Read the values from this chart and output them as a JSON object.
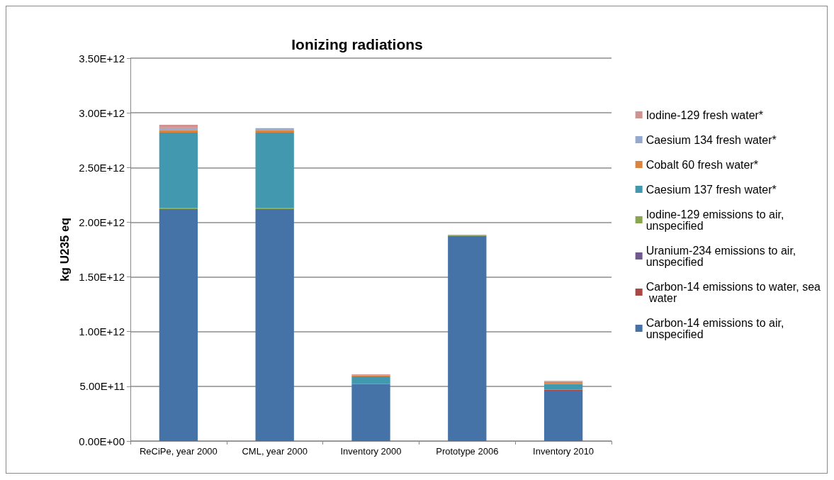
{
  "chart_data": {
    "type": "bar",
    "title": "Ionizing radiations",
    "ylabel": "kg U235 eq",
    "stacked": true,
    "grid": "y",
    "legend": "right",
    "categories": [
      "ReCiPe, year 2000",
      "CML, year 2000",
      "Inventory 2000",
      "Prototype 2006",
      "Inventory 2010"
    ],
    "ylim": [
      0,
      3500000000000
    ],
    "yticks": [
      {
        "value": 0,
        "label": "0.00E+00"
      },
      {
        "value": 500000000000,
        "label": "5.00E+11"
      },
      {
        "value": 1000000000000,
        "label": "1.00E+12"
      },
      {
        "value": 1500000000000,
        "label": "1.50E+12"
      },
      {
        "value": 2000000000000,
        "label": "2.00E+12"
      },
      {
        "value": 2500000000000,
        "label": "2.50E+12"
      },
      {
        "value": 3000000000000,
        "label": "3.00E+12"
      },
      {
        "value": 3500000000000,
        "label": "3.50E+12"
      }
    ],
    "series": [
      {
        "name": "Carbon-14 emissions to air, unspecified",
        "color": "#4572a7",
        "values": [
          2120000000000,
          2120000000000,
          520000000000,
          1875000000000,
          460000000000
        ]
      },
      {
        "name": "Carbon-14 emissions to water, sea water",
        "color": "#aa4643",
        "values": [
          0,
          0,
          0,
          0,
          10000000000
        ]
      },
      {
        "name": "Uranium-234 emissions to air, unspecified",
        "color": "#71588f",
        "values": [
          0,
          0,
          0,
          0,
          0
        ]
      },
      {
        "name": "Iodine-129 emissions to air, unspecified",
        "color": "#89a54e",
        "values": [
          10000000000,
          10000000000,
          0,
          10000000000,
          0
        ]
      },
      {
        "name": "Caesium 137 fresh water*",
        "color": "#4198af",
        "values": [
          690000000000,
          690000000000,
          70000000000,
          0,
          50000000000
        ]
      },
      {
        "name": "Cobalt 60 fresh water*",
        "color": "#db843d",
        "values": [
          20000000000,
          20000000000,
          10000000000,
          0,
          20000000000
        ]
      },
      {
        "name": "Caesium 134 fresh water*",
        "color": "#93a9cf",
        "values": [
          20000000000,
          20000000000,
          0,
          0,
          0
        ]
      },
      {
        "name": "Iodine-129 fresh water*",
        "color": "#d19392",
        "values": [
          30000000000,
          0,
          10000000000,
          0,
          10000000000
        ]
      }
    ]
  }
}
